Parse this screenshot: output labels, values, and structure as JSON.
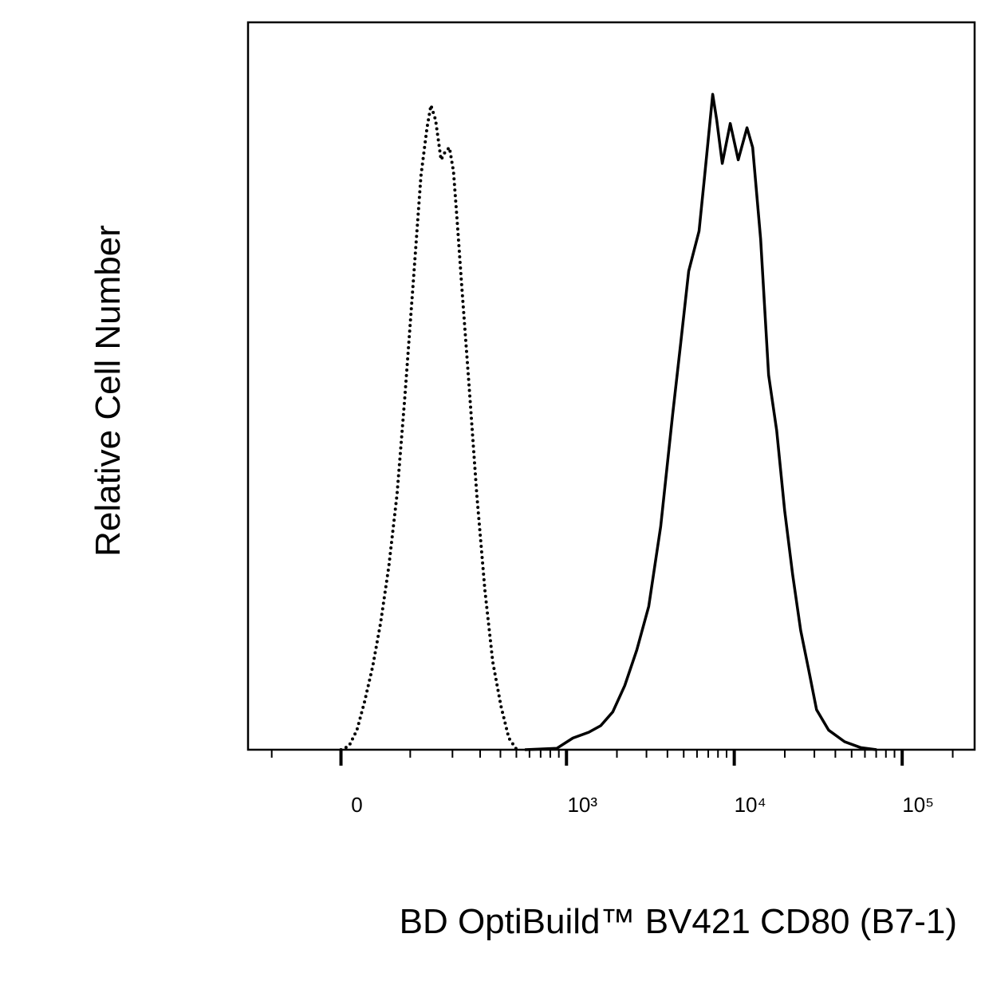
{
  "chart_data": {
    "type": "histogram-overlay",
    "x_label": "BD OptiBuild™ BV421 CD80 (B7-1)",
    "y_label": "Relative Cell Number",
    "xscale": "biexponential",
    "xlim": [
      -150,
      270000
    ],
    "ylim": [
      0,
      100
    ],
    "xticks": [
      0,
      {
        "value": 1000,
        "label": "10³"
      },
      {
        "value": 10000,
        "label": "10⁴"
      },
      {
        "value": 100000,
        "label": "10⁵"
      }
    ],
    "minor_xticks": [
      -100,
      100,
      200,
      300,
      400,
      500,
      600,
      700,
      800,
      900,
      2000,
      3000,
      4000,
      5000,
      6000,
      7000,
      8000,
      9000,
      20000,
      30000,
      40000,
      50000,
      60000,
      70000,
      80000,
      90000,
      200000
    ],
    "series": [
      {
        "color": "#000000",
        "style": "dotted",
        "x": [
          0,
          10,
          20,
          30,
          41,
          52,
          64,
          77,
          90,
          105,
          121,
          134,
          143,
          154,
          168,
          179,
          191,
          203,
          215,
          228,
          255,
          286,
          321,
          359,
          403,
          450,
          503
        ],
        "values": [
          0,
          0.5,
          2.7,
          6.6,
          11.5,
          17.5,
          25.2,
          35.1,
          48.2,
          63.6,
          78.9,
          85.5,
          88.6,
          86.6,
          81.1,
          82.2,
          82.8,
          79.5,
          72.4,
          64.7,
          50.4,
          35.1,
          21.9,
          12.1,
          6.0,
          1.6,
          0
        ]
      },
      {
        "color": "#000000",
        "style": "solid",
        "x": [
          563,
          877,
          1092,
          1359,
          1602,
          1889,
          2227,
          2626,
          3094,
          3647,
          4299,
          4797,
          5354,
          6173,
          6666,
          7438,
          7857,
          8485,
          9462,
          10564,
          11912,
          12870,
          14360,
          16023,
          17878,
          19953,
          22266,
          24850,
          27730,
          30900,
          36470,
          45400,
          56500,
          70400
        ],
        "values": [
          0,
          0.2,
          1.6,
          2.4,
          3.3,
          5.2,
          8.8,
          13.7,
          19.7,
          30.7,
          46.1,
          55.9,
          65.8,
          71.3,
          78.9,
          90.1,
          86.6,
          80.6,
          86.1,
          81.1,
          85.5,
          82.8,
          70.2,
          51.5,
          43.9,
          32.9,
          24.1,
          16.4,
          11.0,
          5.5,
          2.7,
          1.1,
          0.3,
          0
        ]
      }
    ]
  }
}
